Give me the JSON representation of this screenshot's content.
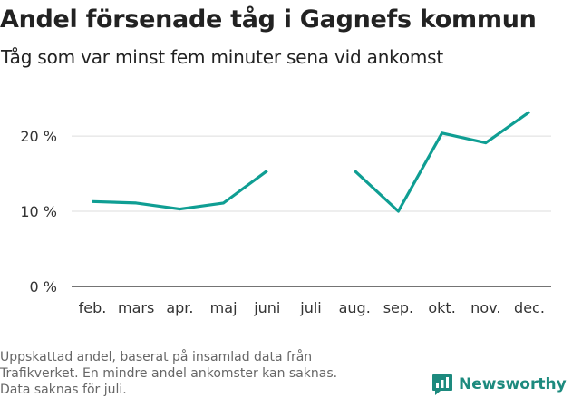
{
  "chart_data": {
    "type": "line",
    "title": "Andel försenade tåg i Gagnefs kommun",
    "subtitle": "Tåg som var minst fem minuter sena vid ankomst",
    "categories": [
      "feb.",
      "mars",
      "apr.",
      "maj",
      "juni",
      "juli",
      "aug.",
      "sep.",
      "okt.",
      "nov.",
      "dec."
    ],
    "series": [
      {
        "values": [
          11.3,
          11.1,
          10.3,
          11.1,
          15.4,
          null,
          15.4,
          10.0,
          20.4,
          19.1,
          23.2
        ]
      }
    ],
    "yticks": [
      {
        "value": 0,
        "label": "0 %"
      },
      {
        "value": 10,
        "label": "10 %"
      },
      {
        "value": 20,
        "label": "20 %"
      }
    ],
    "ylim": [
      0,
      26.4
    ],
    "grid": true,
    "xlabel": "",
    "ylabel": "",
    "line_color": "#0f9e93",
    "grid_color": "#dddddd"
  },
  "footnote": {
    "lines": [
      "Uppskattad andel, baserat på insamlad data från",
      "Trafikverket. En mindre andel ankomster kan saknas.",
      "Data saknas för juli."
    ]
  },
  "brand": {
    "name": "Newsworthy",
    "color": "#1d8a7e",
    "icon": "newsworthy-logo-icon"
  }
}
